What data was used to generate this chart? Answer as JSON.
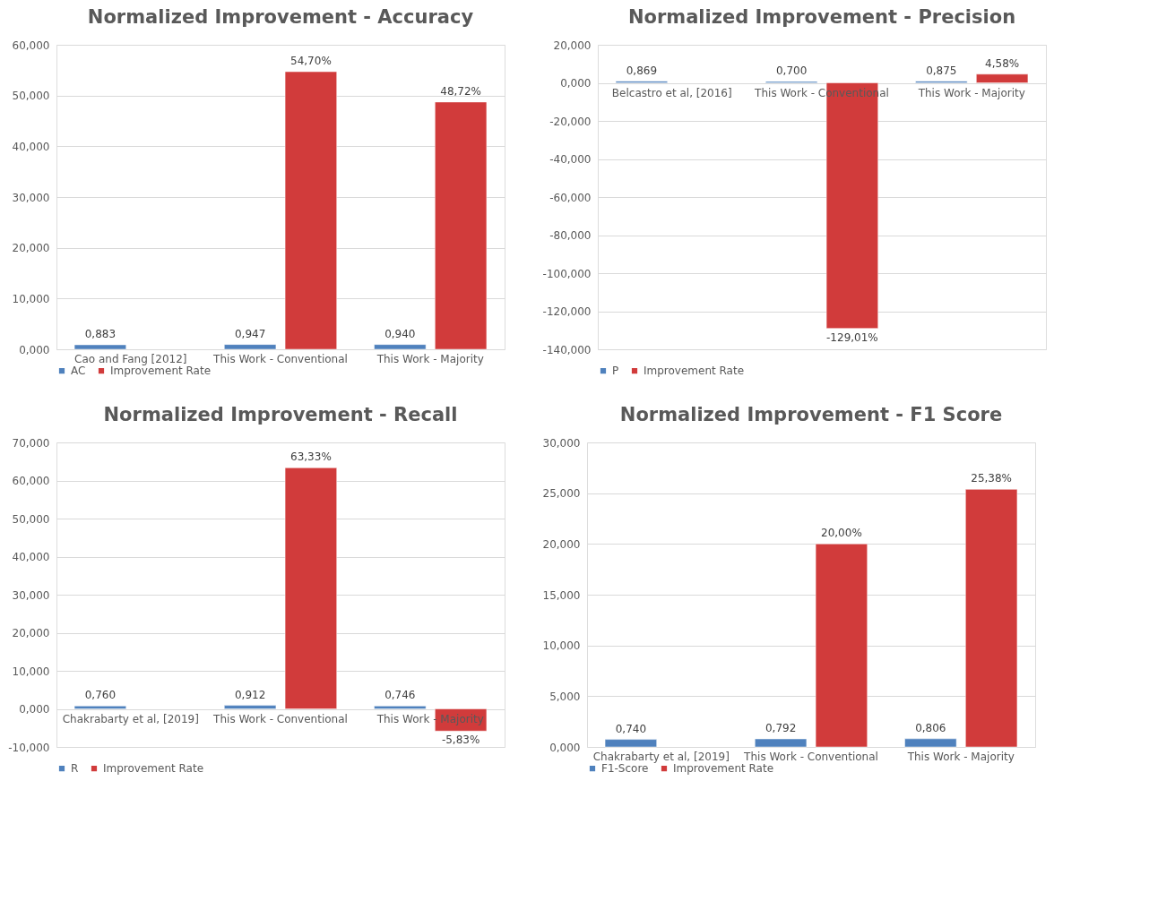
{
  "chart_data": [
    {
      "type": "bar",
      "title": "Normalized  Improvement - Accuracy",
      "categories": [
        "Cao and Fang [2012]",
        "This Work - Conventional",
        "This Work - Majority"
      ],
      "series": [
        {
          "name": "AC",
          "color": "#4f81bd",
          "values": [
            0.883,
            0.947,
            0.94
          ],
          "value_labels": [
            "0,883",
            "0,947",
            "0,940"
          ]
        },
        {
          "name": "Improvement Rate",
          "color": "#d13b3b",
          "values": [
            null,
            54.7,
            48.72
          ],
          "value_labels": [
            null,
            "54,70%",
            "48,72%"
          ]
        }
      ],
      "ylim": [
        0,
        60
      ],
      "yticks": [
        {
          "value": 0,
          "label": "0,000"
        },
        {
          "value": 10,
          "label": "10,000"
        },
        {
          "value": 20,
          "label": "20,000"
        },
        {
          "value": 30,
          "label": "30,000"
        },
        {
          "value": 40,
          "label": "40,000"
        },
        {
          "value": 50,
          "label": "50,000"
        },
        {
          "value": 60,
          "label": "60,000"
        }
      ],
      "grid": "y",
      "legend": "bottom"
    },
    {
      "type": "bar",
      "title": "Normalized  Improvement  - Precision",
      "categories": [
        "Belcastro et al, [2016]",
        "This Work - Conventional",
        "This Work - Majority"
      ],
      "series": [
        {
          "name": "P",
          "color": "#4f81bd",
          "values": [
            0.869,
            0.7,
            0.875
          ],
          "value_labels": [
            "0,869",
            "0,700",
            "0,875"
          ]
        },
        {
          "name": "Improvement Rate",
          "color": "#d13b3b",
          "values": [
            null,
            -129.01,
            4.58
          ],
          "value_labels": [
            null,
            "-129,01%",
            "4,58%"
          ]
        }
      ],
      "ylim": [
        -140,
        20
      ],
      "yticks": [
        {
          "value": -140,
          "label": "-140,000"
        },
        {
          "value": -120,
          "label": "-120,000"
        },
        {
          "value": -100,
          "label": "-100,000"
        },
        {
          "value": -80,
          "label": "-80,000"
        },
        {
          "value": -60,
          "label": "-60,000"
        },
        {
          "value": -40,
          "label": "-40,000"
        },
        {
          "value": -20,
          "label": "-20,000"
        },
        {
          "value": 0,
          "label": "0,000"
        },
        {
          "value": 20,
          "label": "20,000"
        }
      ],
      "grid": "y",
      "legend": "bottom"
    },
    {
      "type": "bar",
      "title": "Normalized  Improvement - Recall",
      "categories": [
        "Chakrabarty et al, [2019]",
        "This Work - Conventional",
        "This Work - Majority"
      ],
      "series": [
        {
          "name": "R",
          "color": "#4f81bd",
          "values": [
            0.76,
            0.912,
            0.746
          ],
          "value_labels": [
            "0,760",
            "0,912",
            "0,746"
          ]
        },
        {
          "name": "Improvement Rate",
          "color": "#d13b3b",
          "values": [
            null,
            63.33,
            -5.83
          ],
          "value_labels": [
            null,
            "63,33%",
            "-5,83%"
          ]
        }
      ],
      "ylim": [
        -10,
        70
      ],
      "yticks": [
        {
          "value": -10,
          "label": "-10,000"
        },
        {
          "value": 0,
          "label": "0,000"
        },
        {
          "value": 10,
          "label": "10,000"
        },
        {
          "value": 20,
          "label": "20,000"
        },
        {
          "value": 30,
          "label": "30,000"
        },
        {
          "value": 40,
          "label": "40,000"
        },
        {
          "value": 50,
          "label": "50,000"
        },
        {
          "value": 60,
          "label": "60,000"
        },
        {
          "value": 70,
          "label": "70,000"
        }
      ],
      "grid": "y",
      "legend": "bottom"
    },
    {
      "type": "bar",
      "title": "Normalized  Improvement - F1 Score",
      "categories": [
        "Chakrabarty et al, [2019]",
        "This Work - Conventional",
        "This Work - Majority"
      ],
      "series": [
        {
          "name": "F1-Score",
          "color": "#4f81bd",
          "values": [
            0.74,
            0.792,
            0.806
          ],
          "value_labels": [
            "0,740",
            "0,792",
            "0,806"
          ]
        },
        {
          "name": "Improvement Rate",
          "color": "#d13b3b",
          "values": [
            null,
            20.0,
            25.38
          ],
          "value_labels": [
            null,
            "20,00%",
            "25,38%"
          ]
        }
      ],
      "ylim": [
        0,
        30
      ],
      "yticks": [
        {
          "value": 0,
          "label": "0,000"
        },
        {
          "value": 5,
          "label": "5,000"
        },
        {
          "value": 10,
          "label": "10,000"
        },
        {
          "value": 15,
          "label": "15,000"
        },
        {
          "value": 20,
          "label": "20,000"
        },
        {
          "value": 25,
          "label": "25,000"
        },
        {
          "value": 30,
          "label": "30,000"
        }
      ],
      "grid": "y",
      "legend": "bottom"
    }
  ]
}
